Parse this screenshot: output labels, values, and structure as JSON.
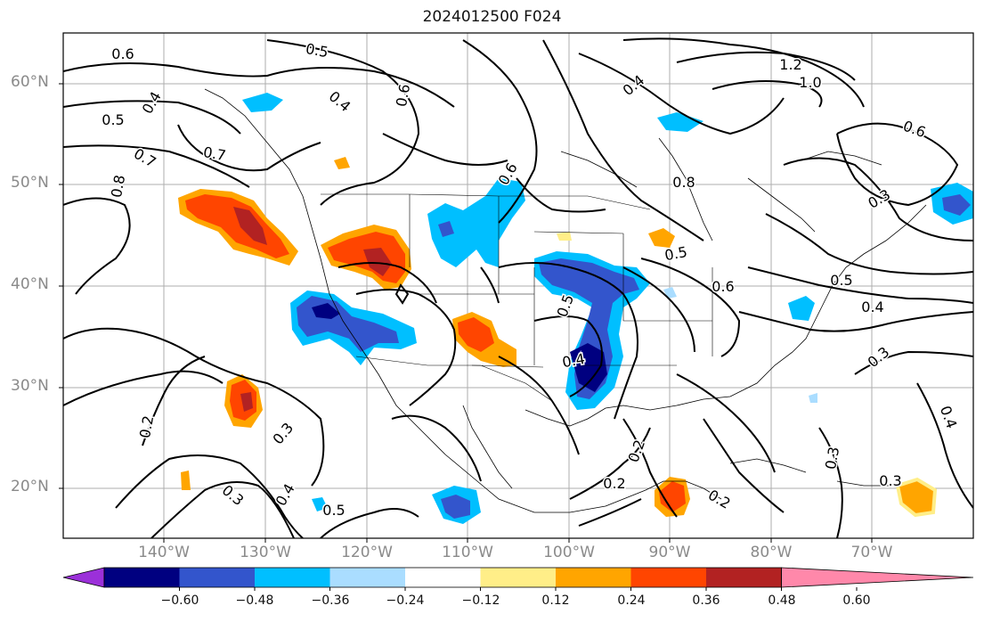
{
  "title": "2024012500 F024",
  "lat_labels": [
    "60°N",
    "50°N",
    "40°N",
    "30°N",
    "20°N"
  ],
  "lon_labels": [
    "140°W",
    "130°W",
    "120°W",
    "110°W",
    "100°W",
    "90°W",
    "80°W",
    "70°W"
  ],
  "contour_labels": [
    "0.6",
    "0.5",
    "0.4",
    "0.5",
    "0.7",
    "0.7",
    "0.8",
    "0.6",
    "0.4",
    "0.6",
    "0.4",
    "1.2",
    "1.0",
    "0.6",
    "0.3",
    "0.5",
    "0.8",
    "0.5",
    "0.6",
    "0.5",
    "0.4",
    "0.4",
    "0.3",
    "0.2",
    "0.3",
    "0.4",
    "0.3",
    "0.5",
    "0.2",
    "0.2",
    "0.2",
    "0.3",
    "0.4",
    "0.3"
  ],
  "colorbar": {
    "tick_labels": [
      "−0.60",
      "−0.48",
      "−0.36",
      "−0.24",
      "−0.12",
      "0.12",
      "0.24",
      "0.36",
      "0.48",
      "0.60"
    ],
    "colors": [
      "#9b30d9",
      "#000080",
      "#3355cc",
      "#00bfff",
      "#aaddff",
      "#ffffff",
      "#ffee88",
      "#ffa500",
      "#ff4500",
      "#b22222",
      "#ff88aa"
    ]
  },
  "fill_colors": {
    "light_blue": "#aaddff",
    "cyan": "#00bfff",
    "blue": "#3355cc",
    "navy": "#000080",
    "yellow": "#ffee88",
    "orange": "#ffa500",
    "red_orange": "#ff4500",
    "dark_red": "#b22222"
  }
}
